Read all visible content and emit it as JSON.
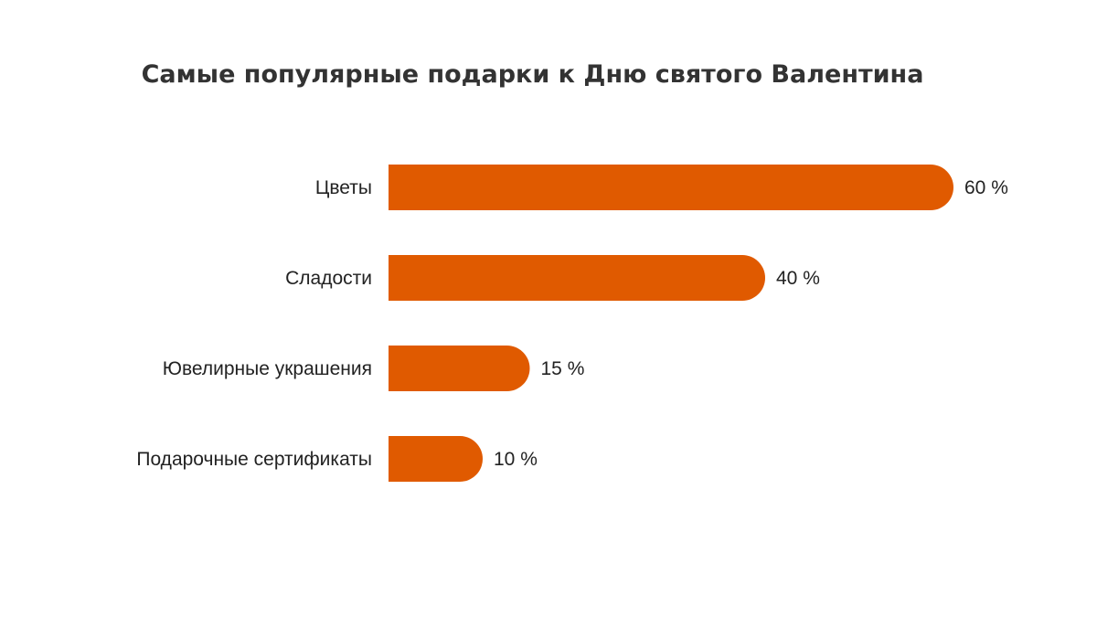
{
  "chart_data": {
    "type": "bar",
    "orientation": "horizontal",
    "title": "Самые популярные подарки к Дню святого Валентина",
    "categories": [
      "Цветы",
      "Сладости",
      "Ювелирные украшения",
      "Подарочные сертификаты"
    ],
    "values": [
      60,
      40,
      15,
      10
    ],
    "value_suffix": " %",
    "xlabel": "",
    "ylabel": "",
    "xlim": [
      0,
      60
    ],
    "grid": false,
    "legend": "none",
    "bar_color": "#E05A00"
  }
}
